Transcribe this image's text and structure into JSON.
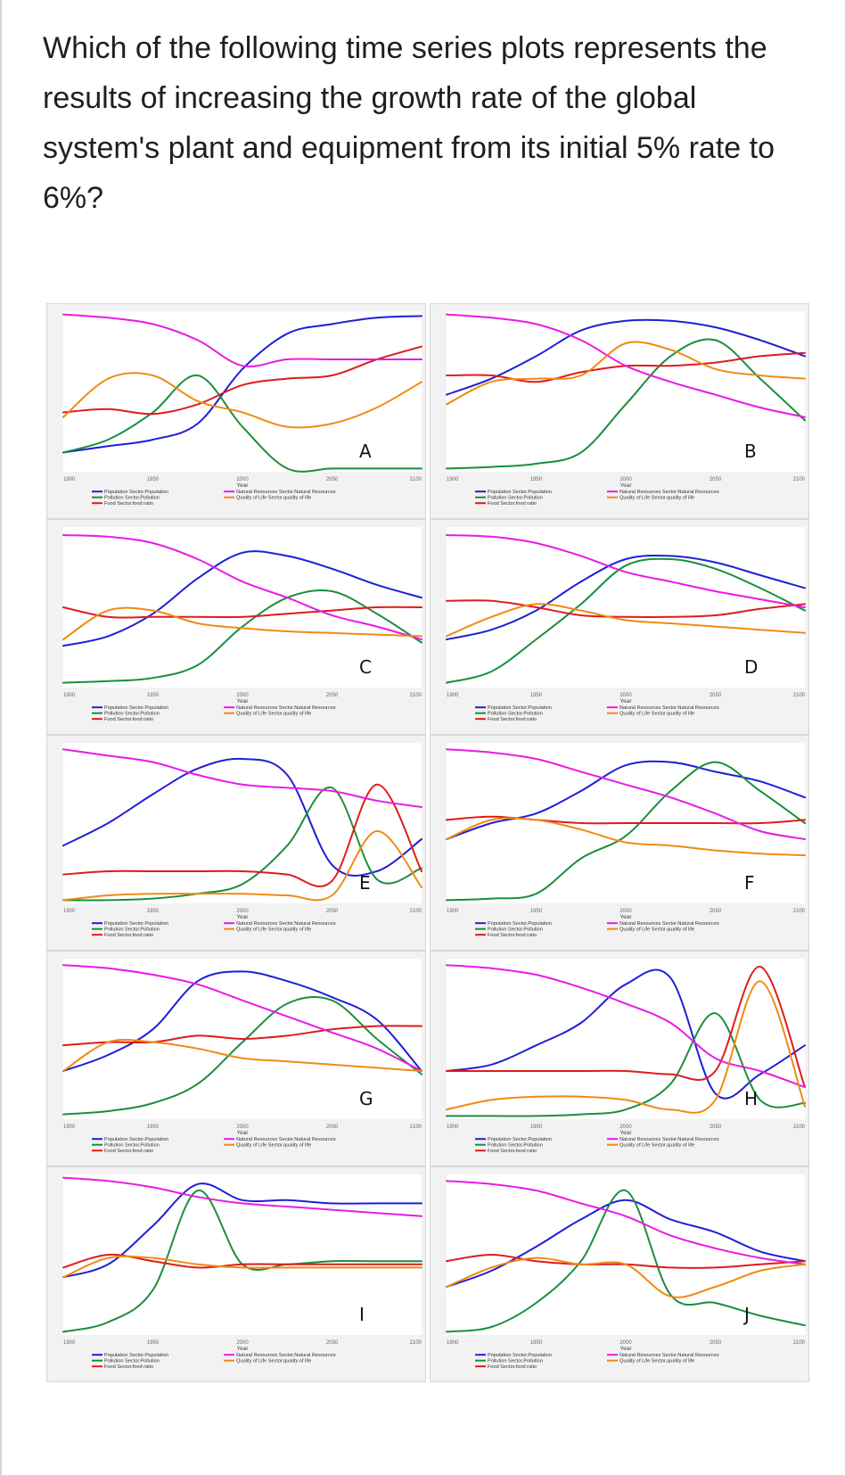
{
  "question": "Which of the following time series plots represents the results of increasing the growth rate of the global system's plant and equipment from its initial 5% rate to 6%?",
  "colors": {
    "population": "#1f1fd6",
    "pollution": "#1a8f3c",
    "food_ratio": "#e01b1b",
    "natural_resources": "#e81ae8",
    "quality_of_life": "#f08a12"
  },
  "legend": {
    "population": "Population Sector.Population",
    "pollution": "Pollution Sector.Pollution",
    "food_ratio": "Food Sector.food ratio",
    "natural_resources": "Natural Resources Sector.Natural Resources",
    "quality_of_life": "Quality of Life Sector.quality of life"
  },
  "xlabel": "Year",
  "xticks": [
    "1900",
    "1950",
    "2000",
    "2050",
    "2100"
  ],
  "chart_data": [
    {
      "type": "line",
      "option": "A",
      "x": [
        1900,
        1925,
        1950,
        1975,
        2000,
        2025,
        2050,
        2075,
        2100
      ],
      "series": [
        {
          "name": "Population Sector.Population",
          "values": [
            0.12,
            0.16,
            0.2,
            0.3,
            0.64,
            0.86,
            0.92,
            0.96,
            0.97
          ]
        },
        {
          "name": "Pollution Sector.Pollution",
          "values": [
            0.12,
            0.2,
            0.37,
            0.6,
            0.28,
            0.02,
            0.02,
            0.02,
            0.02
          ]
        },
        {
          "name": "Food Sector.food ratio",
          "values": [
            0.37,
            0.39,
            0.36,
            0.42,
            0.54,
            0.58,
            0.6,
            0.7,
            0.78
          ]
        },
        {
          "name": "Natural Resources Sector.Natural Resources",
          "values": [
            0.98,
            0.96,
            0.92,
            0.82,
            0.66,
            0.7,
            0.7,
            0.7,
            0.7
          ]
        },
        {
          "name": "Quality of Life Sector.quality of life",
          "values": [
            0.34,
            0.58,
            0.6,
            0.44,
            0.37,
            0.28,
            0.3,
            0.4,
            0.56
          ]
        }
      ]
    },
    {
      "type": "line",
      "option": "B",
      "x": [
        1900,
        1925,
        1950,
        1975,
        2000,
        2025,
        2050,
        2075,
        2100
      ],
      "series": [
        {
          "name": "Population Sector.Population",
          "values": [
            0.48,
            0.58,
            0.72,
            0.88,
            0.94,
            0.94,
            0.9,
            0.82,
            0.72
          ]
        },
        {
          "name": "Pollution Sector.Pollution",
          "values": [
            0.02,
            0.03,
            0.05,
            0.12,
            0.42,
            0.72,
            0.82,
            0.58,
            0.32
          ]
        },
        {
          "name": "Food Sector.food ratio",
          "values": [
            0.6,
            0.6,
            0.56,
            0.62,
            0.66,
            0.66,
            0.68,
            0.72,
            0.74
          ]
        },
        {
          "name": "Natural Resources Sector.Natural Resources",
          "values": [
            0.98,
            0.96,
            0.92,
            0.82,
            0.66,
            0.56,
            0.48,
            0.4,
            0.34
          ]
        },
        {
          "name": "Quality of Life Sector.quality of life",
          "values": [
            0.42,
            0.56,
            0.58,
            0.6,
            0.8,
            0.76,
            0.64,
            0.6,
            0.58
          ]
        }
      ]
    },
    {
      "type": "line",
      "option": "C",
      "x": [
        1900,
        1925,
        1950,
        1975,
        2000,
        2025,
        2050,
        2075,
        2100
      ],
      "series": [
        {
          "name": "Population Sector.Population",
          "values": [
            0.26,
            0.32,
            0.46,
            0.68,
            0.84,
            0.82,
            0.74,
            0.64,
            0.56
          ]
        },
        {
          "name": "Pollution Sector.Pollution",
          "values": [
            0.03,
            0.04,
            0.06,
            0.14,
            0.38,
            0.56,
            0.6,
            0.46,
            0.28
          ]
        },
        {
          "name": "Food Sector.food ratio",
          "values": [
            0.5,
            0.44,
            0.44,
            0.44,
            0.44,
            0.46,
            0.48,
            0.5,
            0.5
          ]
        },
        {
          "name": "Natural Resources Sector.Natural Resources",
          "values": [
            0.95,
            0.94,
            0.9,
            0.8,
            0.66,
            0.56,
            0.45,
            0.38,
            0.3
          ]
        },
        {
          "name": "Quality of Life Sector.quality of life",
          "values": [
            0.3,
            0.48,
            0.48,
            0.4,
            0.37,
            0.35,
            0.34,
            0.33,
            0.32
          ]
        }
      ]
    },
    {
      "type": "line",
      "option": "D",
      "x": [
        1900,
        1925,
        1950,
        1975,
        2000,
        2025,
        2050,
        2075,
        2100
      ],
      "series": [
        {
          "name": "Population Sector.Population",
          "values": [
            0.3,
            0.36,
            0.48,
            0.66,
            0.8,
            0.82,
            0.78,
            0.7,
            0.62
          ]
        },
        {
          "name": "Pollution Sector.Pollution",
          "values": [
            0.03,
            0.1,
            0.3,
            0.52,
            0.76,
            0.8,
            0.74,
            0.62,
            0.48
          ]
        },
        {
          "name": "Food Sector.food ratio",
          "values": [
            0.54,
            0.54,
            0.5,
            0.45,
            0.44,
            0.44,
            0.45,
            0.49,
            0.52
          ]
        },
        {
          "name": "Natural Resources Sector.Natural Resources",
          "values": [
            0.95,
            0.94,
            0.9,
            0.82,
            0.72,
            0.66,
            0.6,
            0.55,
            0.5
          ]
        },
        {
          "name": "Quality of Life Sector.quality of life",
          "values": [
            0.32,
            0.44,
            0.52,
            0.48,
            0.42,
            0.4,
            0.38,
            0.36,
            0.34
          ]
        }
      ]
    },
    {
      "type": "line",
      "option": "E",
      "x": [
        1900,
        1925,
        1950,
        1975,
        2000,
        2025,
        2050,
        2075,
        2100
      ],
      "series": [
        {
          "name": "Population Sector.Population",
          "values": [
            0.36,
            0.5,
            0.68,
            0.84,
            0.9,
            0.8,
            0.24,
            0.2,
            0.4
          ]
        },
        {
          "name": "Pollution Sector.Pollution",
          "values": [
            0.02,
            0.02,
            0.03,
            0.06,
            0.12,
            0.36,
            0.72,
            0.15,
            0.22
          ]
        },
        {
          "name": "Food Sector.food ratio",
          "values": [
            0.18,
            0.2,
            0.2,
            0.2,
            0.2,
            0.18,
            0.14,
            0.74,
            0.2
          ]
        },
        {
          "name": "Natural Resources Sector.Natural Resources",
          "values": [
            0.96,
            0.92,
            0.88,
            0.8,
            0.74,
            0.72,
            0.7,
            0.64,
            0.6
          ]
        },
        {
          "name": "Quality of Life Sector.quality of life",
          "values": [
            0.02,
            0.05,
            0.06,
            0.06,
            0.06,
            0.05,
            0.05,
            0.45,
            0.1
          ]
        }
      ]
    },
    {
      "type": "line",
      "option": "F",
      "x": [
        1900,
        1925,
        1950,
        1975,
        2000,
        2025,
        2050,
        2075,
        2100
      ],
      "series": [
        {
          "name": "Population Sector.Population",
          "values": [
            0.4,
            0.5,
            0.56,
            0.7,
            0.86,
            0.88,
            0.82,
            0.76,
            0.66
          ]
        },
        {
          "name": "Pollution Sector.Pollution",
          "values": [
            0.02,
            0.03,
            0.06,
            0.28,
            0.42,
            0.7,
            0.88,
            0.7,
            0.5
          ]
        },
        {
          "name": "Food Sector.food ratio",
          "values": [
            0.52,
            0.54,
            0.52,
            0.5,
            0.5,
            0.5,
            0.5,
            0.5,
            0.52
          ]
        },
        {
          "name": "Natural Resources Sector.Natural Resources",
          "values": [
            0.96,
            0.94,
            0.9,
            0.82,
            0.74,
            0.66,
            0.56,
            0.45,
            0.4
          ]
        },
        {
          "name": "Quality of Life Sector.quality of life",
          "values": [
            0.4,
            0.52,
            0.52,
            0.46,
            0.38,
            0.36,
            0.33,
            0.31,
            0.3
          ]
        }
      ]
    },
    {
      "type": "line",
      "option": "G",
      "x": [
        1900,
        1925,
        1950,
        1975,
        2000,
        2025,
        2050,
        2075,
        2100
      ],
      "series": [
        {
          "name": "Population Sector.Population",
          "values": [
            0.3,
            0.4,
            0.56,
            0.86,
            0.92,
            0.86,
            0.76,
            0.62,
            0.3
          ]
        },
        {
          "name": "Pollution Sector.Pollution",
          "values": [
            0.03,
            0.05,
            0.1,
            0.22,
            0.48,
            0.72,
            0.74,
            0.5,
            0.28
          ]
        },
        {
          "name": "Food Sector.food ratio",
          "values": [
            0.46,
            0.48,
            0.48,
            0.52,
            0.5,
            0.52,
            0.56,
            0.58,
            0.58
          ]
        },
        {
          "name": "Natural Resources Sector.Natural Resources",
          "values": [
            0.96,
            0.94,
            0.9,
            0.84,
            0.74,
            0.64,
            0.54,
            0.44,
            0.3
          ]
        },
        {
          "name": "Quality of Life Sector.quality of life",
          "values": [
            0.3,
            0.48,
            0.48,
            0.44,
            0.38,
            0.36,
            0.34,
            0.32,
            0.3
          ]
        }
      ]
    },
    {
      "type": "line",
      "option": "H",
      "x": [
        1900,
        1925,
        1950,
        1975,
        2000,
        2025,
        2050,
        2075,
        2100
      ],
      "series": [
        {
          "name": "Population Sector.Population",
          "values": [
            0.3,
            0.34,
            0.46,
            0.6,
            0.84,
            0.88,
            0.16,
            0.28,
            0.46
          ]
        },
        {
          "name": "Pollution Sector.Pollution",
          "values": [
            0.02,
            0.02,
            0.02,
            0.03,
            0.06,
            0.22,
            0.66,
            0.12,
            0.1
          ]
        },
        {
          "name": "Food Sector.food ratio",
          "values": [
            0.3,
            0.3,
            0.3,
            0.3,
            0.3,
            0.28,
            0.3,
            0.95,
            0.2
          ]
        },
        {
          "name": "Natural Resources Sector.Natural Resources",
          "values": [
            0.96,
            0.94,
            0.9,
            0.82,
            0.72,
            0.6,
            0.38,
            0.3,
            0.2
          ]
        },
        {
          "name": "Quality of Life Sector.quality of life",
          "values": [
            0.06,
            0.12,
            0.14,
            0.14,
            0.12,
            0.06,
            0.12,
            0.86,
            0.08
          ]
        }
      ]
    },
    {
      "type": "line",
      "option": "I",
      "x": [
        1900,
        1925,
        1950,
        1975,
        2000,
        2025,
        2050,
        2075,
        2100
      ],
      "series": [
        {
          "name": "Population Sector.Population",
          "values": [
            0.36,
            0.44,
            0.68,
            0.94,
            0.84,
            0.84,
            0.82,
            0.82,
            0.82
          ]
        },
        {
          "name": "Pollution Sector.Pollution",
          "values": [
            0.02,
            0.08,
            0.28,
            0.9,
            0.44,
            0.44,
            0.46,
            0.46,
            0.46
          ]
        },
        {
          "name": "Food Sector.food ratio",
          "values": [
            0.42,
            0.5,
            0.46,
            0.42,
            0.44,
            0.44,
            0.44,
            0.44,
            0.44
          ]
        },
        {
          "name": "Natural Resources Sector.Natural Resources",
          "values": [
            0.98,
            0.96,
            0.92,
            0.86,
            0.82,
            0.8,
            0.78,
            0.76,
            0.74
          ]
        },
        {
          "name": "Quality of Life Sector.quality of life",
          "values": [
            0.36,
            0.48,
            0.48,
            0.44,
            0.42,
            0.42,
            0.42,
            0.42,
            0.42
          ]
        }
      ]
    },
    {
      "type": "line",
      "option": "J",
      "x": [
        1900,
        1925,
        1950,
        1975,
        2000,
        2025,
        2050,
        2075,
        2100
      ],
      "series": [
        {
          "name": "Population Sector.Population",
          "values": [
            0.3,
            0.4,
            0.55,
            0.72,
            0.84,
            0.72,
            0.64,
            0.52,
            0.46
          ]
        },
        {
          "name": "Pollution Sector.Pollution",
          "values": [
            0.02,
            0.05,
            0.2,
            0.46,
            0.9,
            0.25,
            0.2,
            0.12,
            0.06
          ]
        },
        {
          "name": "Food Sector.food ratio",
          "values": [
            0.46,
            0.5,
            0.46,
            0.44,
            0.44,
            0.42,
            0.42,
            0.44,
            0.46
          ]
        },
        {
          "name": "Natural Resources Sector.Natural Resources",
          "values": [
            0.96,
            0.94,
            0.9,
            0.82,
            0.74,
            0.62,
            0.54,
            0.48,
            0.44
          ]
        },
        {
          "name": "Quality of Life Sector.quality of life",
          "values": [
            0.3,
            0.42,
            0.48,
            0.44,
            0.44,
            0.24,
            0.3,
            0.4,
            0.44
          ]
        }
      ]
    }
  ]
}
